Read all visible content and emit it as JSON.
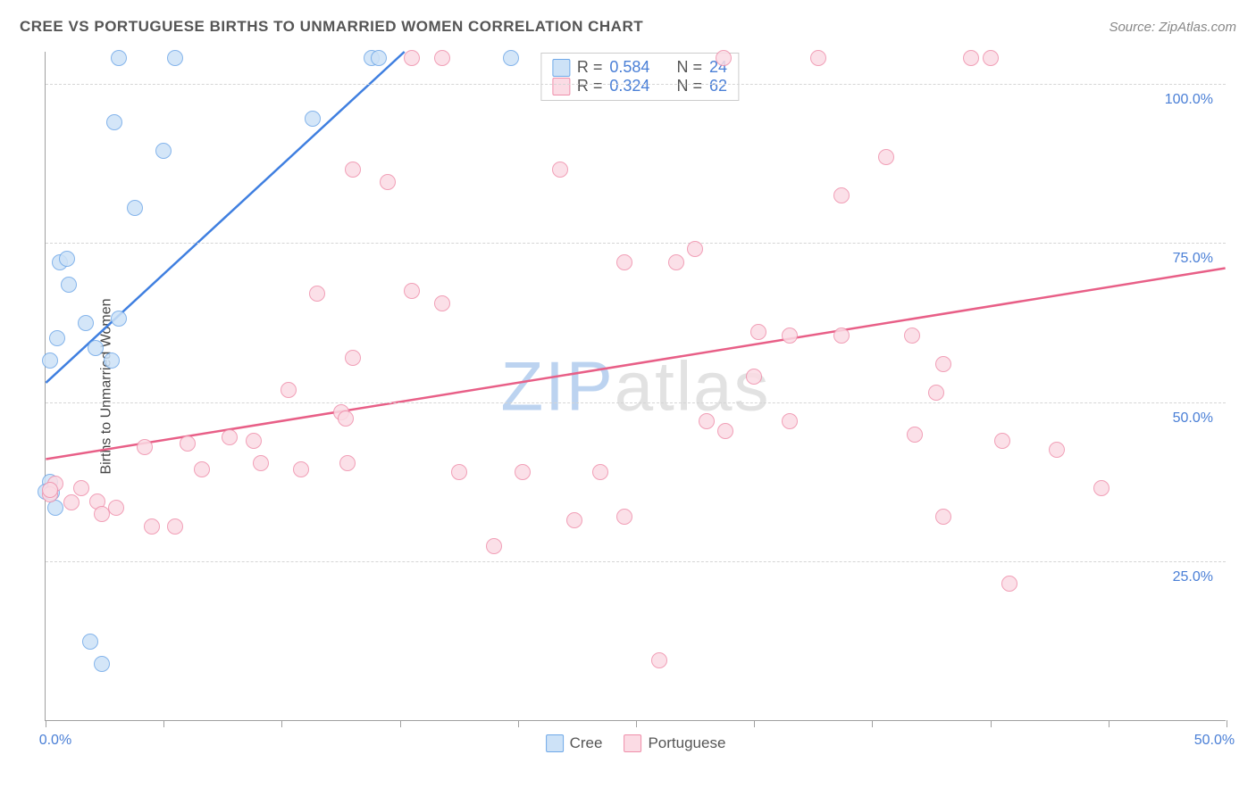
{
  "title": "CREE VS PORTUGUESE BIRTHS TO UNMARRIED WOMEN CORRELATION CHART",
  "source": "Source: ZipAtlas.com",
  "ylabel": "Births to Unmarried Women",
  "watermark_a": "ZIP",
  "watermark_b": "atlas",
  "chart": {
    "type": "scatter",
    "xlim": [
      0,
      50
    ],
    "ylim": [
      0,
      105
    ],
    "xticks": [
      0,
      5,
      10,
      15,
      20,
      25,
      30,
      35,
      40,
      45,
      50
    ],
    "xlabel_ticks": [
      0,
      50
    ],
    "xlabel_values": [
      "0.0%",
      "50.0%"
    ],
    "yticks": [
      25,
      50,
      75,
      100
    ],
    "ylabel_values": [
      "25.0%",
      "50.0%",
      "75.0%",
      "100.0%"
    ],
    "background_color": "#ffffff",
    "grid_color": "#d5d5d5",
    "axis_color": "#a0a0a0",
    "tick_label_color": "#4a7fd6",
    "series": [
      {
        "name": "Cree",
        "marker_fill": "#cde2f7",
        "marker_stroke": "#6fa8e8",
        "line_color": "#3f7fe0",
        "marker_radius": 9,
        "line_width": 2.5,
        "R": "0.584",
        "N": "24",
        "trend": {
          "x1": 0,
          "y1": 53,
          "x2": 15.2,
          "y2": 105
        },
        "points": [
          [
            3.1,
            104
          ],
          [
            5.5,
            104
          ],
          [
            13.8,
            104
          ],
          [
            14.1,
            104
          ],
          [
            19.7,
            104
          ],
          [
            2.9,
            94
          ],
          [
            5.0,
            89.5
          ],
          [
            11.3,
            94.5
          ],
          [
            3.8,
            80.5
          ],
          [
            0.6,
            72
          ],
          [
            0.9,
            72.5
          ],
          [
            1.0,
            68.5
          ],
          [
            1.7,
            62.5
          ],
          [
            3.1,
            63.2
          ],
          [
            0.5,
            60
          ],
          [
            0.2,
            56.5
          ],
          [
            2.1,
            58.5
          ],
          [
            2.8,
            56.5
          ],
          [
            0.2,
            37.5
          ],
          [
            0.0,
            36
          ],
          [
            0.25,
            35.8
          ],
          [
            0.4,
            33.5
          ],
          [
            1.9,
            12.5
          ],
          [
            2.4,
            9
          ]
        ]
      },
      {
        "name": "Portuguese",
        "marker_fill": "#fbdbe4",
        "marker_stroke": "#ef8fab",
        "line_color": "#e85f87",
        "marker_radius": 9,
        "line_width": 2.5,
        "R": "0.324",
        "N": "62",
        "trend": {
          "x1": 0,
          "y1": 41,
          "x2": 50,
          "y2": 71
        },
        "points": [
          [
            15.5,
            104
          ],
          [
            16.8,
            104
          ],
          [
            28.7,
            104
          ],
          [
            32.7,
            104
          ],
          [
            39.2,
            104
          ],
          [
            40.0,
            104
          ],
          [
            14.5,
            84.5
          ],
          [
            13.0,
            86.5
          ],
          [
            21.8,
            86.5
          ],
          [
            35.6,
            88.5
          ],
          [
            33.7,
            82.5
          ],
          [
            24.5,
            72
          ],
          [
            26.7,
            72
          ],
          [
            27.5,
            74
          ],
          [
            11.5,
            67
          ],
          [
            15.5,
            67.5
          ],
          [
            16.8,
            65.5
          ],
          [
            13.0,
            57.0
          ],
          [
            10.3,
            52
          ],
          [
            30.2,
            61
          ],
          [
            31.5,
            60.5
          ],
          [
            33.7,
            60.5
          ],
          [
            36.7,
            60.5
          ],
          [
            38.0,
            56
          ],
          [
            30.0,
            54
          ],
          [
            4.2,
            43
          ],
          [
            6.0,
            43.5
          ],
          [
            7.8,
            44.5
          ],
          [
            8.8,
            44
          ],
          [
            6.6,
            39.5
          ],
          [
            9.1,
            40.5
          ],
          [
            10.8,
            39.5
          ],
          [
            12.5,
            48.5
          ],
          [
            12.8,
            40.5
          ],
          [
            12.7,
            47.5
          ],
          [
            17.5,
            39
          ],
          [
            20.2,
            39
          ],
          [
            19.0,
            27.5
          ],
          [
            22.4,
            31.5
          ],
          [
            23.5,
            39
          ],
          [
            24.5,
            32
          ],
          [
            28.0,
            47
          ],
          [
            28.8,
            45.5
          ],
          [
            31.5,
            47
          ],
          [
            36.8,
            45
          ],
          [
            40.5,
            44
          ],
          [
            42.8,
            42.5
          ],
          [
            37.7,
            51.5
          ],
          [
            44.7,
            36.5
          ],
          [
            38.0,
            32
          ],
          [
            40.8,
            21.5
          ],
          [
            1.5,
            36.5
          ],
          [
            2.2,
            34.5
          ],
          [
            1.1,
            34.3
          ],
          [
            0.4,
            37.2
          ],
          [
            0.2,
            35.5
          ],
          [
            0.2,
            36.2
          ],
          [
            2.4,
            32.5
          ],
          [
            3.0,
            33.5
          ],
          [
            4.5,
            30.5
          ],
          [
            5.5,
            30.5
          ],
          [
            26.0,
            9.5
          ]
        ]
      }
    ]
  },
  "legend_top": {
    "rows": [
      {
        "swatch_fill": "#cde2f7",
        "swatch_stroke": "#6fa8e8",
        "r_label": "R =",
        "r_val": "0.584",
        "n_label": "N =",
        "n_val": "24"
      },
      {
        "swatch_fill": "#fbdbe4",
        "swatch_stroke": "#ef8fab",
        "r_label": "R =",
        "r_val": "0.324",
        "n_label": "N =",
        "n_val": "62"
      }
    ]
  },
  "legend_bottom": {
    "items": [
      {
        "swatch_fill": "#cde2f7",
        "swatch_stroke": "#6fa8e8",
        "label": "Cree"
      },
      {
        "swatch_fill": "#fbdbe4",
        "swatch_stroke": "#ef8fab",
        "label": "Portuguese"
      }
    ]
  }
}
